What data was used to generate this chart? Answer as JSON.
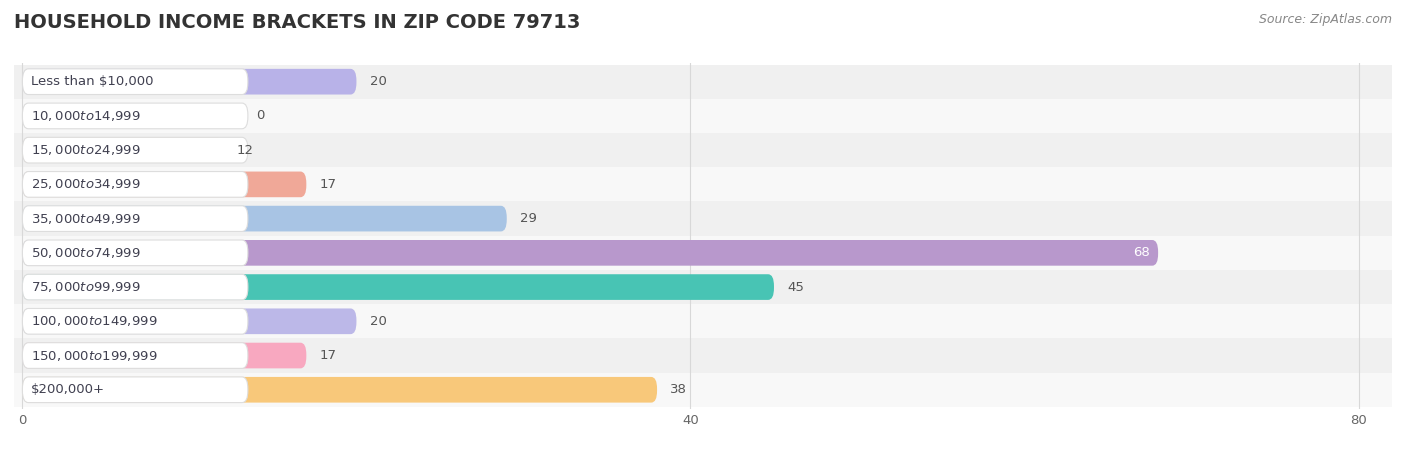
{
  "title": "HOUSEHOLD INCOME BRACKETS IN ZIP CODE 79713",
  "source": "Source: ZipAtlas.com",
  "categories": [
    "Less than $10,000",
    "$10,000 to $14,999",
    "$15,000 to $24,999",
    "$25,000 to $34,999",
    "$35,000 to $49,999",
    "$50,000 to $74,999",
    "$75,000 to $99,999",
    "$100,000 to $149,999",
    "$150,000 to $199,999",
    "$200,000+"
  ],
  "values": [
    20,
    0,
    12,
    17,
    29,
    68,
    45,
    20,
    17,
    38
  ],
  "bar_colors": [
    "#b8b2e8",
    "#f4a0b5",
    "#f8c898",
    "#f0a898",
    "#a8c4e4",
    "#b898cc",
    "#48c4b4",
    "#bcb8e8",
    "#f8a8c0",
    "#f8c87a"
  ],
  "max_val": 80,
  "xticks": [
    0,
    40,
    80
  ],
  "bg_color": "#ffffff",
  "row_bg_even": "#f0f0f0",
  "row_bg_odd": "#f8f8f8",
  "grid_color": "#d8d8d8",
  "label_bg": "#ffffff",
  "label_border": "#dddddd",
  "label_fontsize": 9.5,
  "value_fontsize": 9.5,
  "title_fontsize": 14,
  "source_fontsize": 9
}
